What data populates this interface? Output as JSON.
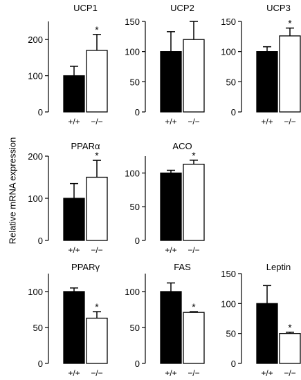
{
  "figure": {
    "ylabel": "Relative mRNA expression"
  },
  "chart_data": [
    {
      "type": "bar",
      "title": "UCP1",
      "categories": [
        "+/+",
        "−/−"
      ],
      "values": [
        100,
        170
      ],
      "errors": [
        26,
        44
      ],
      "significance": [
        "",
        "*"
      ],
      "ylim": [
        0,
        250
      ],
      "yticks": [
        0,
        100,
        200
      ],
      "bar_colors": [
        "#000000",
        "#ffffff"
      ]
    },
    {
      "type": "bar",
      "title": "UCP2",
      "categories": [
        "+/+",
        "−/−"
      ],
      "values": [
        100,
        120
      ],
      "errors": [
        33,
        30
      ],
      "significance": [
        "",
        ""
      ],
      "ylim": [
        0,
        150
      ],
      "yticks": [
        0,
        50,
        100,
        150
      ],
      "bar_colors": [
        "#000000",
        "#ffffff"
      ]
    },
    {
      "type": "bar",
      "title": "UCP3",
      "categories": [
        "+/+",
        "−/−"
      ],
      "values": [
        100,
        126
      ],
      "errors": [
        8,
        13
      ],
      "significance": [
        "",
        "*"
      ],
      "ylim": [
        0,
        150
      ],
      "yticks": [
        0,
        50,
        100,
        150
      ],
      "bar_colors": [
        "#000000",
        "#ffffff"
      ]
    },
    {
      "type": "bar",
      "title": "PPARα",
      "categories": [
        "+/+",
        "−/−"
      ],
      "values": [
        100,
        150
      ],
      "errors": [
        35,
        40
      ],
      "significance": [
        "",
        "*"
      ],
      "ylim": [
        0,
        200
      ],
      "yticks": [
        0,
        100,
        200
      ],
      "bar_colors": [
        "#000000",
        "#ffffff"
      ]
    },
    {
      "type": "bar",
      "title": "ACO",
      "categories": [
        "+/+",
        "−/−"
      ],
      "values": [
        100,
        113
      ],
      "errors": [
        4,
        6
      ],
      "significance": [
        "",
        "*"
      ],
      "ylim": [
        0,
        125
      ],
      "yticks": [
        0,
        50,
        100
      ],
      "bar_colors": [
        "#000000",
        "#ffffff"
      ]
    },
    {
      "type": "bar",
      "title": "PPARγ",
      "categories": [
        "+/+",
        "−/−"
      ],
      "values": [
        100,
        63
      ],
      "errors": [
        5,
        9
      ],
      "significance": [
        "",
        "*"
      ],
      "ylim": [
        0,
        125
      ],
      "yticks": [
        0,
        50,
        100
      ],
      "bar_colors": [
        "#000000",
        "#ffffff"
      ]
    },
    {
      "type": "bar",
      "title": "FAS",
      "categories": [
        "+/+",
        "−/−"
      ],
      "values": [
        100,
        71
      ],
      "errors": [
        12,
        1
      ],
      "significance": [
        "",
        "*"
      ],
      "ylim": [
        0,
        125
      ],
      "yticks": [
        0,
        50,
        100
      ],
      "bar_colors": [
        "#000000",
        "#ffffff"
      ]
    },
    {
      "type": "bar",
      "title": "Leptin",
      "categories": [
        "+/+",
        "−/−"
      ],
      "values": [
        100,
        50
      ],
      "errors": [
        30,
        2
      ],
      "significance": [
        "",
        "*"
      ],
      "ylim": [
        0,
        150
      ],
      "yticks": [
        0,
        50,
        100,
        150
      ],
      "bar_colors": [
        "#000000",
        "#ffffff"
      ]
    }
  ]
}
